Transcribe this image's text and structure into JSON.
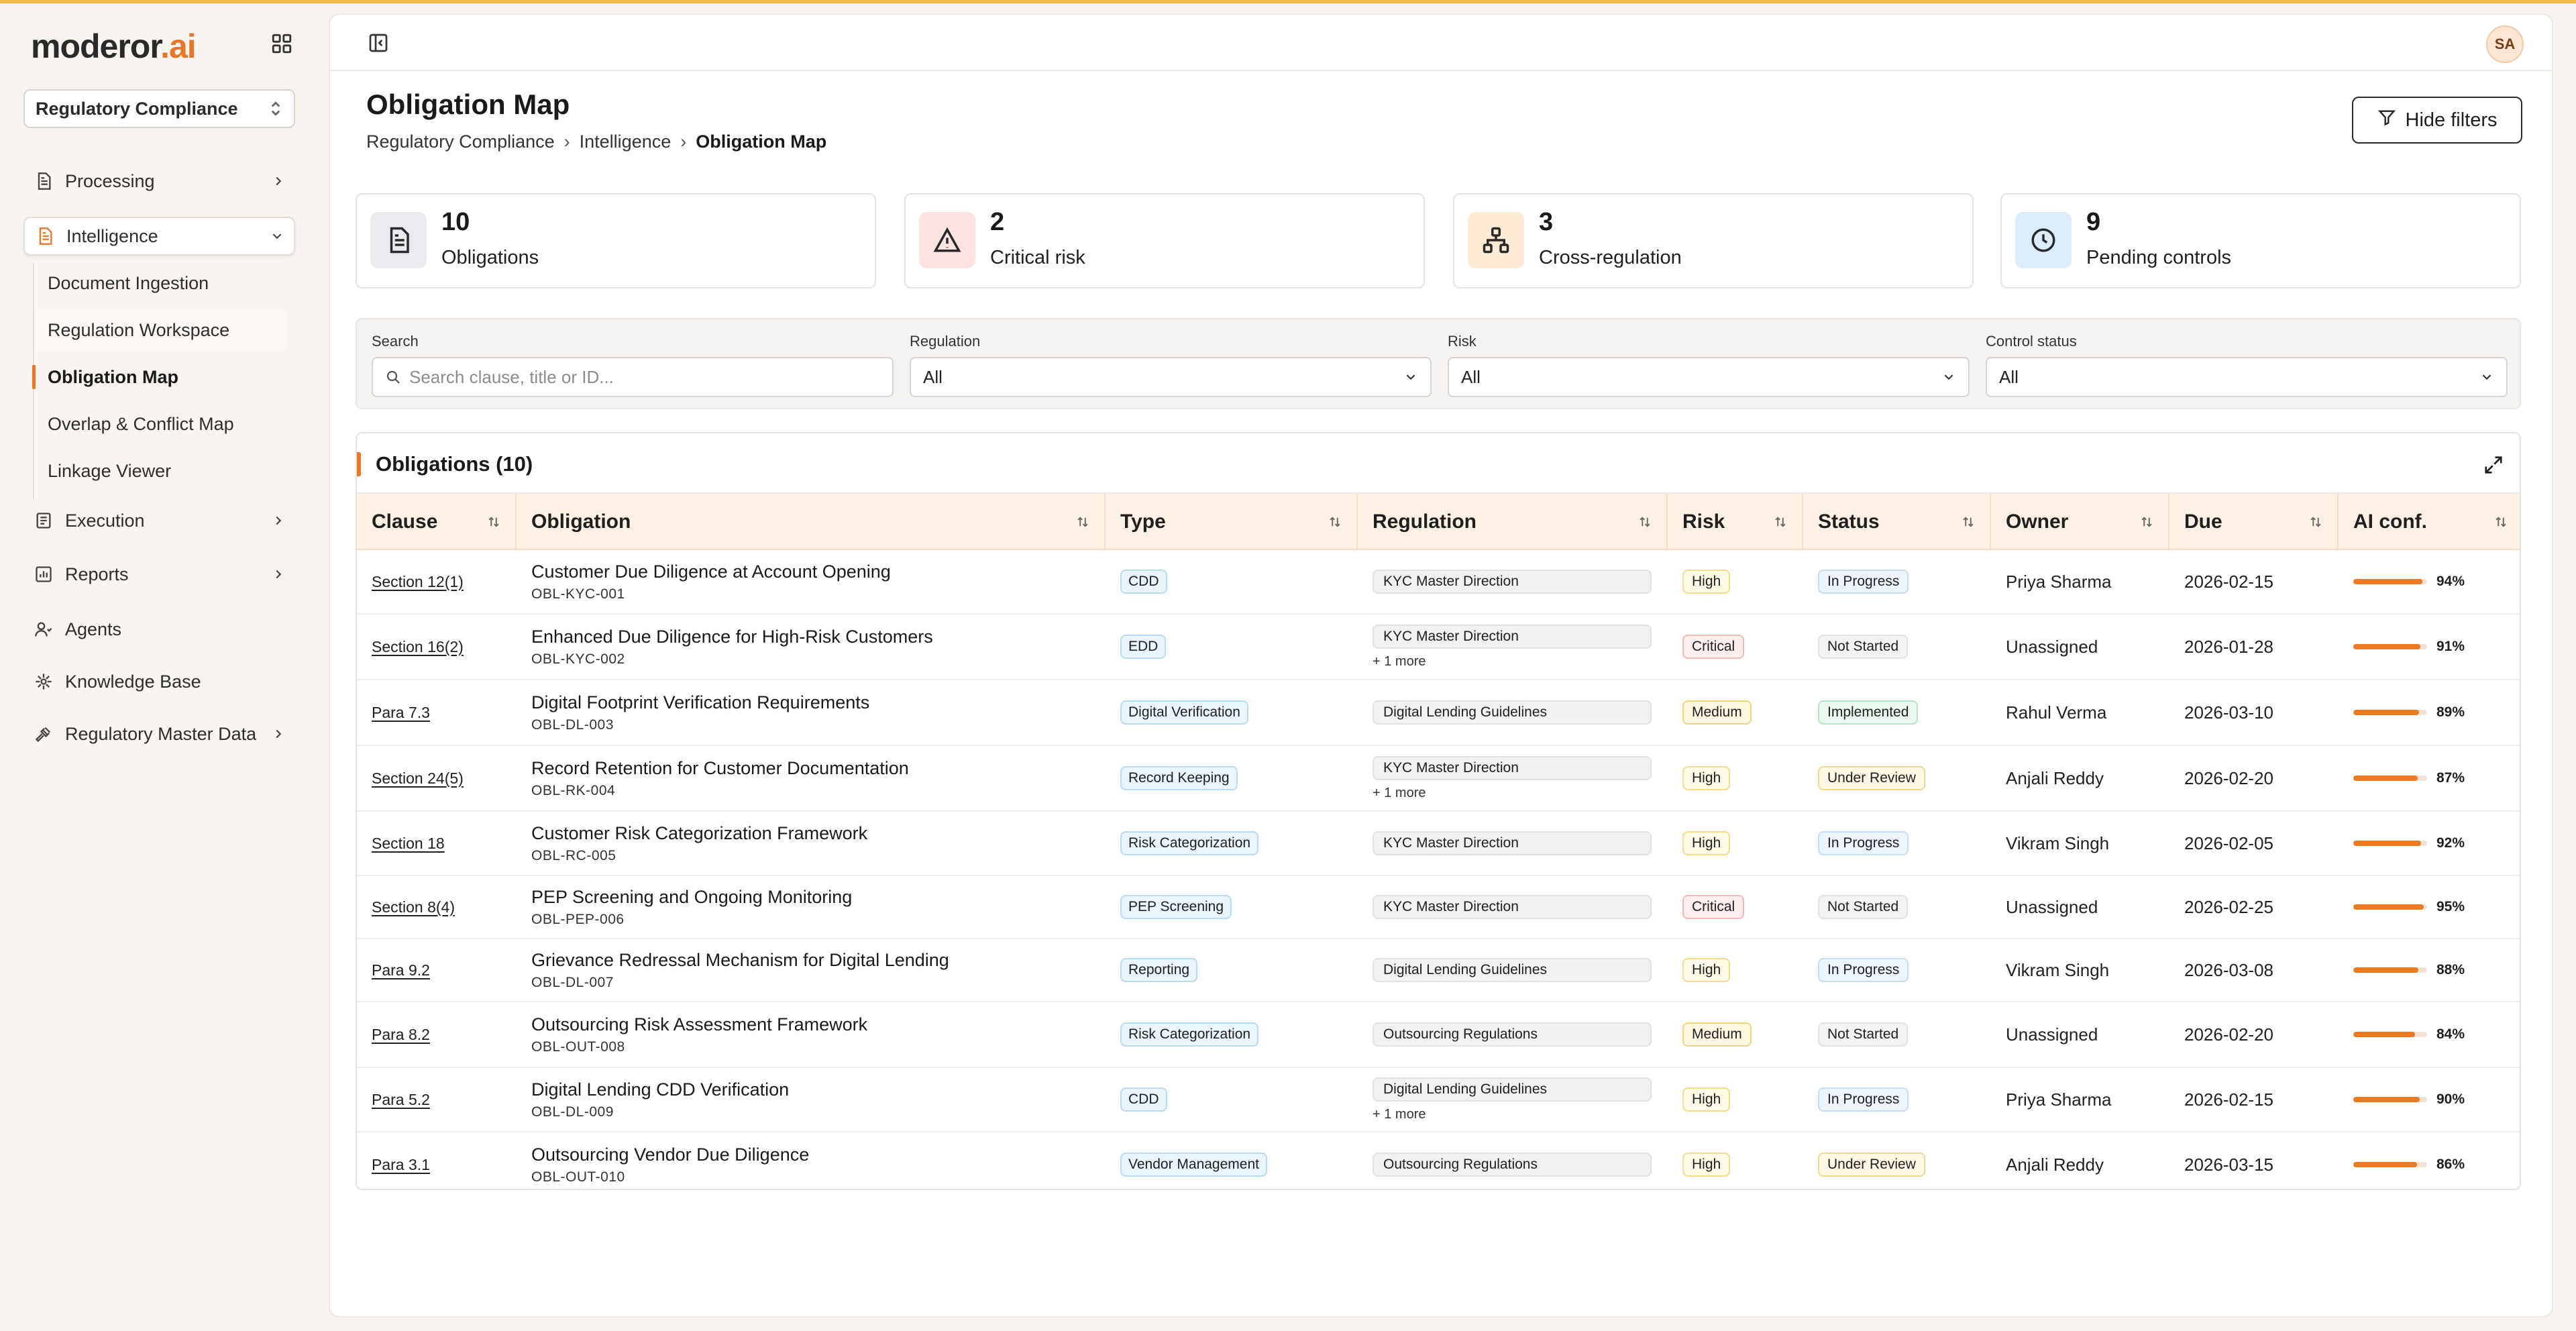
{
  "brand": {
    "prefix": "moderor",
    "suffix": ".ai"
  },
  "workspace": {
    "selected": "Regulatory Compliance"
  },
  "sidebar": {
    "items": [
      {
        "label": "Processing",
        "icon": "document-icon"
      },
      {
        "label": "Intelligence",
        "icon": "document-orange-icon"
      },
      {
        "label": "Execution",
        "icon": "task-icon"
      },
      {
        "label": "Reports",
        "icon": "chart-icon"
      },
      {
        "label": "Agents",
        "icon": "agents-icon"
      },
      {
        "label": "Knowledge Base",
        "icon": "knowledge-icon"
      },
      {
        "label": "Regulatory Master Data",
        "icon": "gavel-icon"
      }
    ],
    "sub_items": [
      "Document Ingestion",
      "Regulation Workspace",
      "Obligation Map",
      "Overlap & Conflict Map",
      "Linkage Viewer"
    ]
  },
  "user": {
    "initials": "SA"
  },
  "page": {
    "title": "Obligation Map",
    "breadcrumb": [
      "Regulatory Compliance",
      "Intelligence",
      "Obligation Map"
    ],
    "breadcrumb_sep": "›",
    "hide_filters_label": "Hide filters"
  },
  "stats": [
    {
      "value": "10",
      "label": "Obligations",
      "icon": "document-icon",
      "color": "#e9ebef"
    },
    {
      "value": "2",
      "label": "Critical risk",
      "icon": "warning-icon",
      "color": "#fde2e2"
    },
    {
      "value": "3",
      "label": "Cross-regulation",
      "icon": "hierarchy-icon",
      "color": "#fdebd6"
    },
    {
      "value": "9",
      "label": "Pending controls",
      "icon": "clock-icon",
      "color": "#dcecfb"
    }
  ],
  "filters": {
    "search_label": "Search",
    "search_placeholder": "Search clause, title or ID...",
    "regulation_label": "Regulation",
    "regulation_value": "All",
    "risk_label": "Risk",
    "risk_value": "All",
    "control_label": "Control status",
    "control_value": "All"
  },
  "table": {
    "title": "Obligations (10)",
    "columns": [
      "Clause",
      "Obligation",
      "Type",
      "Regulation",
      "Risk",
      "Status",
      "Owner",
      "Due",
      "AI conf."
    ],
    "rows": [
      {
        "clause": "Section 12(1)",
        "title": "Customer Due Diligence at Account Opening",
        "id": "OBL-KYC-001",
        "type": "CDD",
        "regulation": "KYC Master Direction",
        "more": "",
        "risk": "High",
        "status": "In Progress",
        "owner": "Priya Sharma",
        "due": "2026-02-15",
        "conf": "94%"
      },
      {
        "clause": "Section 16(2)",
        "title": "Enhanced Due Diligence for High-Risk Customers",
        "id": "OBL-KYC-002",
        "type": "EDD",
        "regulation": "KYC Master Direction",
        "more": "+ 1 more",
        "risk": "Critical",
        "status": "Not Started",
        "owner": "Unassigned",
        "due": "2026-01-28",
        "conf": "91%"
      },
      {
        "clause": "Para 7.3",
        "title": "Digital Footprint Verification Requirements",
        "id": "OBL-DL-003",
        "type": "Digital Verification",
        "regulation": "Digital Lending Guidelines",
        "more": "",
        "risk": "Medium",
        "status": "Implemented",
        "owner": "Rahul Verma",
        "due": "2026-03-10",
        "conf": "89%"
      },
      {
        "clause": "Section 24(5)",
        "title": "Record Retention for Customer Documentation",
        "id": "OBL-RK-004",
        "type": "Record Keeping",
        "regulation": "KYC Master Direction",
        "more": "+ 1 more",
        "risk": "High",
        "status": "Under Review",
        "owner": "Anjali Reddy",
        "due": "2026-02-20",
        "conf": "87%"
      },
      {
        "clause": "Section 18",
        "title": "Customer Risk Categorization Framework",
        "id": "OBL-RC-005",
        "type": "Risk Categorization",
        "regulation": "KYC Master Direction",
        "more": "",
        "risk": "High",
        "status": "In Progress",
        "owner": "Vikram Singh",
        "due": "2026-02-05",
        "conf": "92%"
      },
      {
        "clause": "Section 8(4)",
        "title": "PEP Screening and Ongoing Monitoring",
        "id": "OBL-PEP-006",
        "type": "PEP Screening",
        "regulation": "KYC Master Direction",
        "more": "",
        "risk": "Critical",
        "status": "Not Started",
        "owner": "Unassigned",
        "due": "2026-02-25",
        "conf": "95%"
      },
      {
        "clause": "Para 9.2",
        "title": "Grievance Redressal Mechanism for Digital Lending",
        "id": "OBL-DL-007",
        "type": "Reporting",
        "regulation": "Digital Lending Guidelines",
        "more": "",
        "risk": "High",
        "status": "In Progress",
        "owner": "Vikram Singh",
        "due": "2026-03-08",
        "conf": "88%"
      },
      {
        "clause": "Para 8.2",
        "title": "Outsourcing Risk Assessment Framework",
        "id": "OBL-OUT-008",
        "type": "Risk Categorization",
        "regulation": "Outsourcing Regulations",
        "more": "",
        "risk": "Medium",
        "status": "Not Started",
        "owner": "Unassigned",
        "due": "2026-02-20",
        "conf": "84%"
      },
      {
        "clause": "Para 5.2",
        "title": "Digital Lending CDD Verification",
        "id": "OBL-DL-009",
        "type": "CDD",
        "regulation": "Digital Lending Guidelines",
        "more": "+ 1 more",
        "risk": "High",
        "status": "In Progress",
        "owner": "Priya Sharma",
        "due": "2026-02-15",
        "conf": "90%"
      },
      {
        "clause": "Para 3.1",
        "title": "Outsourcing Vendor Due Diligence",
        "id": "OBL-OUT-010",
        "type": "Vendor Management",
        "regulation": "Outsourcing Regulations",
        "more": "",
        "risk": "High",
        "status": "Under Review",
        "owner": "Anjali Reddy",
        "due": "2026-03-15",
        "conf": "86%"
      }
    ]
  }
}
